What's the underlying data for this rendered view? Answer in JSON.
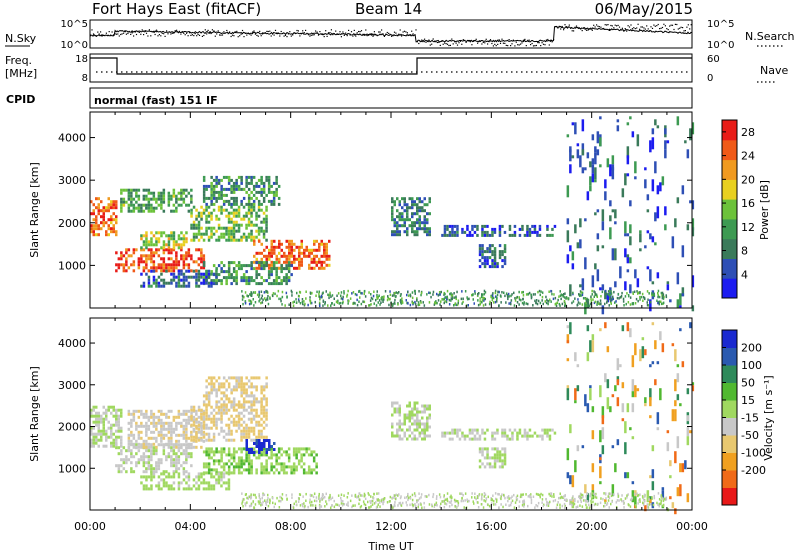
{
  "header": {
    "title": "Fort Hays East (fitACF)",
    "beam": "Beam 14",
    "date": "06/May/2015"
  },
  "status_panels": {
    "nsky": {
      "label": "N.Sky",
      "ticks": [
        "10^5",
        "10^0"
      ]
    },
    "nsearch": {
      "label": "N.Search",
      "ticks": [
        "10^5",
        "10^0"
      ]
    },
    "freq": {
      "label_line1": "Freq.",
      "label_line2": "[MHz]",
      "ticks": [
        "18",
        "8"
      ]
    },
    "nave": {
      "label": "Nave",
      "ticks": [
        "60",
        "0"
      ]
    },
    "cpid": {
      "label": "CPID",
      "text": "normal (fast) 151 IF"
    }
  },
  "x_axis": {
    "label": "Time UT",
    "ticks": [
      "00:00",
      "04:00",
      "08:00",
      "12:00",
      "16:00",
      "20:00",
      "00:00"
    ]
  },
  "colors": {
    "power": [
      "#1c1cf0",
      "#2e4fb5",
      "#3a7a5a",
      "#3d9a52",
      "#6cc23a",
      "#e8d020",
      "#f09a20",
      "#f05a18",
      "#e81c18"
    ],
    "velocity": [
      "#e81818",
      "#f06a18",
      "#f0a020",
      "#e8c870",
      "#c8c8c8",
      "#a0d860",
      "#50b830",
      "#2e8a5a",
      "#2a5ab0",
      "#1a2ad0"
    ]
  },
  "chart_data": [
    {
      "type": "heatmap",
      "title": "",
      "xlabel": "Time UT",
      "ylabel": "Slant Range [km]",
      "xlim": [
        0,
        24
      ],
      "ylim": [
        0,
        4600
      ],
      "yticks": [
        1000,
        2000,
        3000,
        4000
      ],
      "colorbar": {
        "label": "Power [dB]",
        "ticks": [
          4,
          8,
          12,
          16,
          20,
          24,
          28
        ],
        "range": [
          0,
          30
        ]
      },
      "regions": [
        {
          "t": [
            0.0,
            1.0
          ],
          "r": [
            1700,
            2600
          ],
          "level": 24
        },
        {
          "t": [
            1.0,
            4.5
          ],
          "r": [
            900,
            1400
          ],
          "level": 26
        },
        {
          "t": [
            1.2,
            4.0
          ],
          "r": [
            2300,
            2800
          ],
          "level": 12
        },
        {
          "t": [
            2.0,
            3.8
          ],
          "r": [
            1400,
            1800
          ],
          "level": 16
        },
        {
          "t": [
            4.0,
            7.0
          ],
          "r": [
            1600,
            2400
          ],
          "level": 14
        },
        {
          "t": [
            6.5,
            9.5
          ],
          "r": [
            900,
            1600
          ],
          "level": 24
        },
        {
          "t": [
            4.5,
            8.0
          ],
          "r": [
            600,
            1100
          ],
          "level": 10
        },
        {
          "t": [
            2.0,
            5.0
          ],
          "r": [
            500,
            900
          ],
          "level": 6
        },
        {
          "t": [
            4.5,
            7.5
          ],
          "r": [
            2400,
            3100
          ],
          "level": 10
        },
        {
          "t": [
            12.0,
            13.5
          ],
          "r": [
            1700,
            2600
          ],
          "level": 8
        },
        {
          "t": [
            14.0,
            18.5
          ],
          "r": [
            1700,
            1950
          ],
          "level": 6
        },
        {
          "t": [
            15.5,
            16.5
          ],
          "r": [
            1000,
            1500
          ],
          "level": 6
        },
        {
          "t": [
            19.0,
            24.0
          ],
          "r": [
            0,
            4500
          ],
          "level": 6,
          "sparse": true
        }
      ]
    },
    {
      "type": "heatmap",
      "title": "",
      "xlabel": "Time UT",
      "ylabel": "Slant Range [km]",
      "xlim": [
        0,
        24
      ],
      "ylim": [
        0,
        4600
      ],
      "yticks": [
        1000,
        2000,
        3000,
        4000
      ],
      "colorbar": {
        "label": "Velocity [m s⁻¹]",
        "ticks": [
          200,
          100,
          50,
          15,
          -15,
          -50,
          -100,
          -200
        ],
        "range": [
          -250,
          250
        ]
      },
      "regions": [
        {
          "t": [
            0.0,
            1.2
          ],
          "r": [
            1500,
            2500
          ],
          "level": 0
        },
        {
          "t": [
            1.0,
            4.0
          ],
          "r": [
            900,
            1600
          ],
          "level": -10
        },
        {
          "t": [
            1.5,
            4.5
          ],
          "r": [
            1500,
            2400
          ],
          "level": -40
        },
        {
          "t": [
            4.0,
            7.0
          ],
          "r": [
            1700,
            2500
          ],
          "level": -60
        },
        {
          "t": [
            4.5,
            9.0
          ],
          "r": [
            900,
            1500
          ],
          "level": 40
        },
        {
          "t": [
            6.2,
            7.3
          ],
          "r": [
            1400,
            1700
          ],
          "level": 220
        },
        {
          "t": [
            2.0,
            5.5
          ],
          "r": [
            500,
            900
          ],
          "level": 20
        },
        {
          "t": [
            4.5,
            7.0
          ],
          "r": [
            2500,
            3200
          ],
          "level": -60
        },
        {
          "t": [
            12.0,
            13.5
          ],
          "r": [
            1700,
            2600
          ],
          "level": 0
        },
        {
          "t": [
            14.0,
            18.5
          ],
          "r": [
            1700,
            1950
          ],
          "level": 0
        },
        {
          "t": [
            15.5,
            16.5
          ],
          "r": [
            1000,
            1500
          ],
          "level": 0
        },
        {
          "t": [
            19.0,
            24.0
          ],
          "r": [
            0,
            4500
          ],
          "level": 0,
          "sparse": true
        }
      ]
    }
  ]
}
